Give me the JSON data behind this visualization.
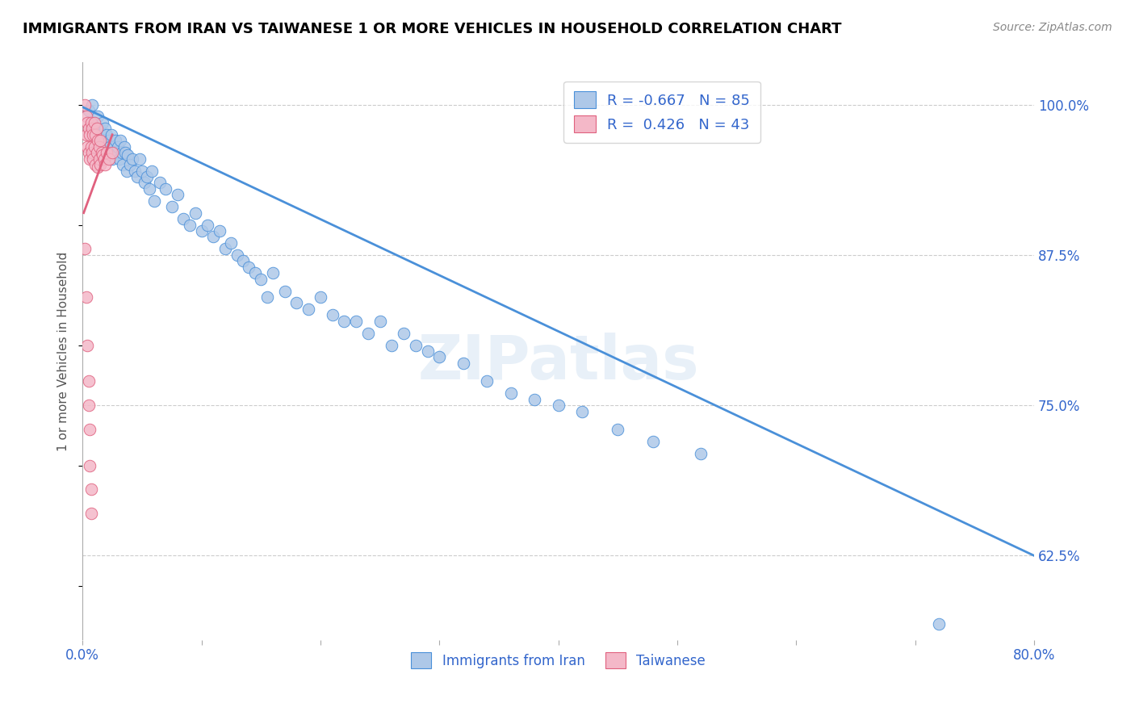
{
  "title": "IMMIGRANTS FROM IRAN VS TAIWANESE 1 OR MORE VEHICLES IN HOUSEHOLD CORRELATION CHART",
  "source": "Source: ZipAtlas.com",
  "ylabel": "1 or more Vehicles in Household",
  "xmin": 0.0,
  "xmax": 0.8,
  "ymin": 0.555,
  "ymax": 1.035,
  "y_ticks_right": [
    0.625,
    0.75,
    0.875,
    1.0
  ],
  "y_tick_labels_right": [
    "62.5%",
    "75.0%",
    "87.5%",
    "100.0%"
  ],
  "blue_color": "#aec8e8",
  "blue_color_dark": "#4a90d9",
  "pink_color": "#f4b8c8",
  "pink_color_dark": "#e0607e",
  "legend_blue_r": "-0.667",
  "legend_blue_n": "85",
  "legend_pink_r": "0.426",
  "legend_pink_n": "43",
  "legend_label_blue": "Immigrants from Iran",
  "legend_label_pink": "Taiwanese",
  "watermark": "ZIPatlas",
  "title_fontsize": 13,
  "source_fontsize": 10,
  "blue_scatter_x": [
    0.005,
    0.008,
    0.01,
    0.012,
    0.013,
    0.014,
    0.015,
    0.016,
    0.017,
    0.018,
    0.019,
    0.02,
    0.021,
    0.022,
    0.023,
    0.024,
    0.025,
    0.026,
    0.027,
    0.028,
    0.029,
    0.03,
    0.031,
    0.032,
    0.033,
    0.034,
    0.035,
    0.036,
    0.037,
    0.038,
    0.04,
    0.042,
    0.044,
    0.046,
    0.048,
    0.05,
    0.052,
    0.054,
    0.056,
    0.058,
    0.06,
    0.065,
    0.07,
    0.075,
    0.08,
    0.085,
    0.09,
    0.095,
    0.1,
    0.105,
    0.11,
    0.115,
    0.12,
    0.125,
    0.13,
    0.135,
    0.14,
    0.145,
    0.15,
    0.155,
    0.16,
    0.17,
    0.18,
    0.19,
    0.2,
    0.21,
    0.22,
    0.23,
    0.24,
    0.25,
    0.26,
    0.27,
    0.28,
    0.29,
    0.3,
    0.32,
    0.34,
    0.36,
    0.38,
    0.4,
    0.42,
    0.45,
    0.48,
    0.52,
    0.72
  ],
  "blue_scatter_y": [
    0.995,
    1.0,
    0.985,
    0.975,
    0.99,
    0.98,
    0.975,
    0.97,
    0.985,
    0.965,
    0.98,
    0.975,
    0.96,
    0.97,
    0.965,
    0.975,
    0.955,
    0.965,
    0.96,
    0.97,
    0.96,
    0.965,
    0.955,
    0.97,
    0.96,
    0.95,
    0.965,
    0.96,
    0.945,
    0.958,
    0.95,
    0.955,
    0.945,
    0.94,
    0.955,
    0.945,
    0.935,
    0.94,
    0.93,
    0.945,
    0.92,
    0.935,
    0.93,
    0.915,
    0.925,
    0.905,
    0.9,
    0.91,
    0.895,
    0.9,
    0.89,
    0.895,
    0.88,
    0.885,
    0.875,
    0.87,
    0.865,
    0.86,
    0.855,
    0.84,
    0.86,
    0.845,
    0.835,
    0.83,
    0.84,
    0.825,
    0.82,
    0.82,
    0.81,
    0.82,
    0.8,
    0.81,
    0.8,
    0.795,
    0.79,
    0.785,
    0.77,
    0.76,
    0.755,
    0.75,
    0.745,
    0.73,
    0.72,
    0.71,
    0.568
  ],
  "pink_scatter_x": [
    0.002,
    0.003,
    0.003,
    0.004,
    0.004,
    0.005,
    0.005,
    0.006,
    0.006,
    0.007,
    0.007,
    0.008,
    0.008,
    0.009,
    0.009,
    0.01,
    0.01,
    0.011,
    0.011,
    0.012,
    0.012,
    0.013,
    0.013,
    0.014,
    0.014,
    0.015,
    0.015,
    0.016,
    0.017,
    0.018,
    0.019,
    0.02,
    0.022,
    0.025,
    0.002,
    0.003,
    0.004,
    0.005,
    0.005,
    0.006,
    0.006,
    0.007,
    0.007
  ],
  "pink_scatter_y": [
    1.0,
    0.99,
    0.975,
    0.985,
    0.965,
    0.98,
    0.96,
    0.975,
    0.955,
    0.985,
    0.965,
    0.98,
    0.96,
    0.975,
    0.955,
    0.985,
    0.965,
    0.975,
    0.95,
    0.98,
    0.96,
    0.97,
    0.948,
    0.965,
    0.955,
    0.97,
    0.95,
    0.96,
    0.958,
    0.955,
    0.95,
    0.96,
    0.955,
    0.96,
    0.88,
    0.84,
    0.8,
    0.77,
    0.75,
    0.73,
    0.7,
    0.68,
    0.66
  ],
  "blue_line_x": [
    0.0,
    0.8
  ],
  "blue_line_y": [
    0.998,
    0.625
  ],
  "pink_line_x": [
    0.001,
    0.025
  ],
  "pink_line_y": [
    0.91,
    0.975
  ]
}
